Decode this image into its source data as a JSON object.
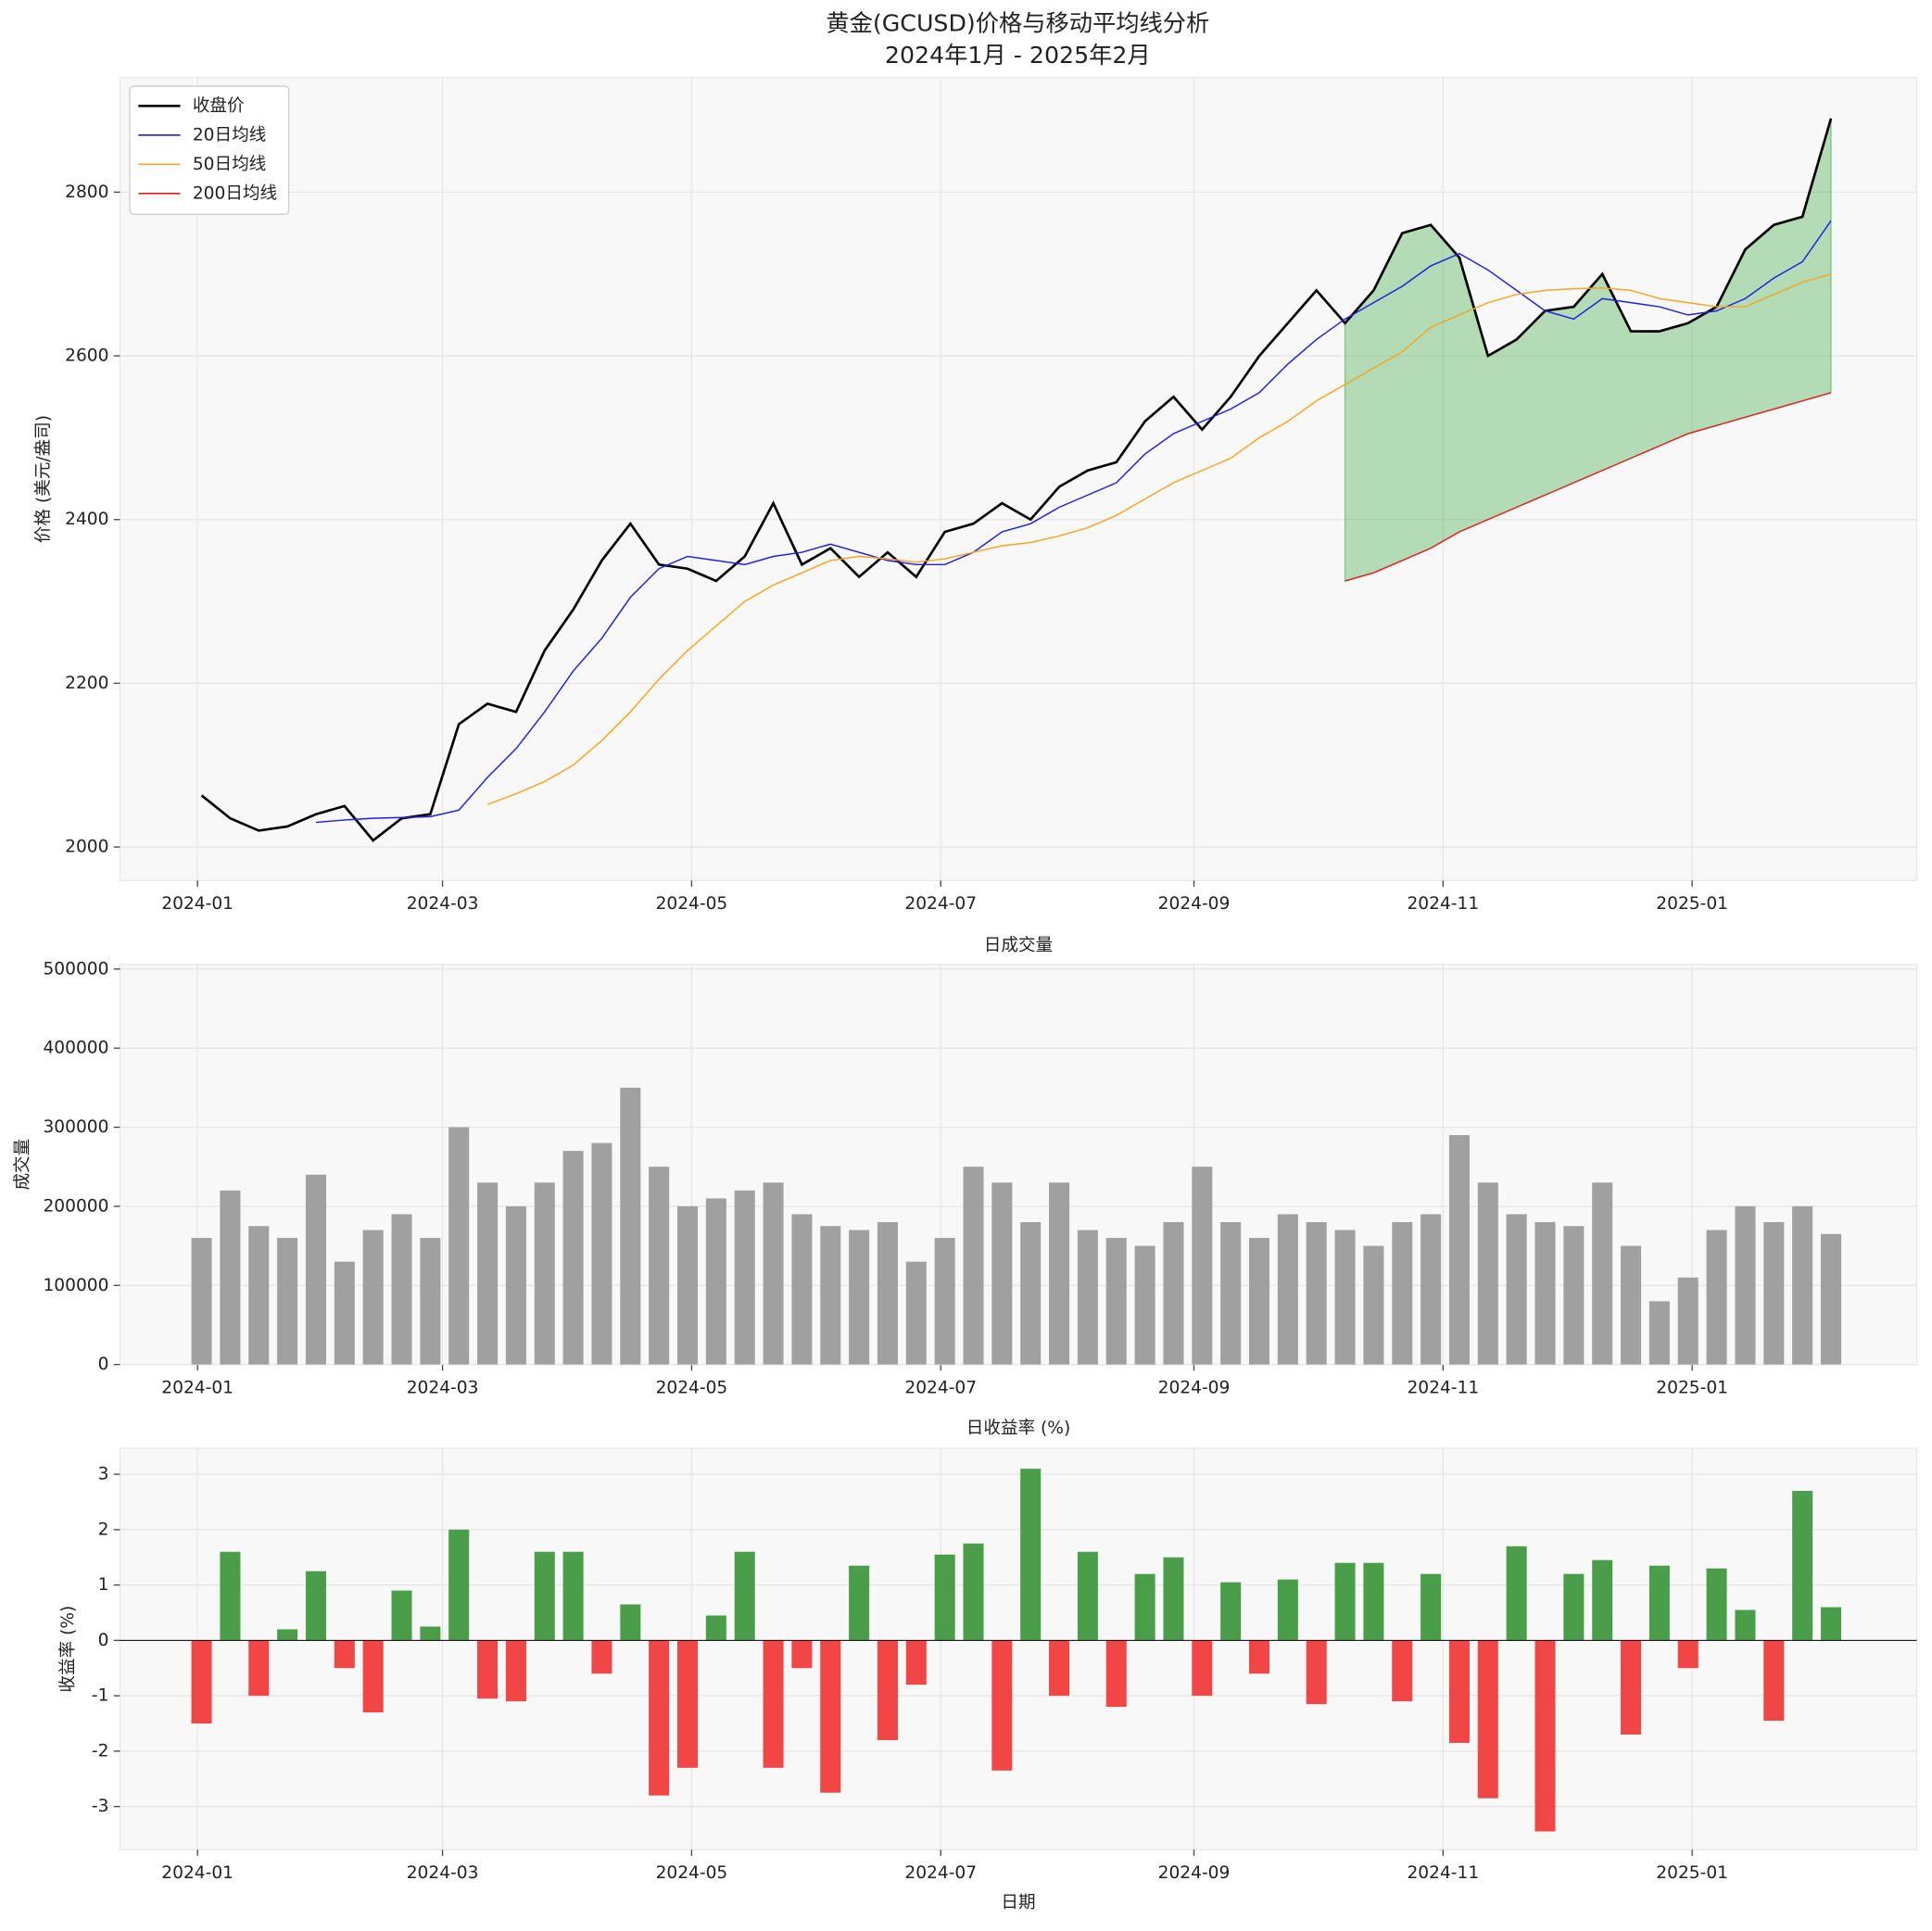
{
  "chart_data": [
    {
      "type": "line",
      "title": "黄金(GCUSD)价格与移动平均线分析",
      "subtitle": "2024年1月 - 2025年2月",
      "ylabel": "价格 (美元/盎司)",
      "x": [
        1,
        8,
        15,
        22,
        29,
        36,
        43,
        50,
        57,
        64,
        71,
        78,
        85,
        92,
        99,
        106,
        113,
        120,
        127,
        134,
        141,
        148,
        155,
        162,
        169,
        176,
        183,
        190,
        197,
        204,
        211,
        218,
        225,
        232,
        239,
        246,
        253,
        260,
        267,
        274,
        281,
        288,
        295,
        302,
        309,
        316,
        323,
        330,
        337,
        344,
        351,
        358,
        365,
        372,
        379,
        386,
        393,
        400
      ],
      "xlim": [
        -19,
        421
      ],
      "xticks": [
        {
          "value": 0,
          "label": "2024-01"
        },
        {
          "value": 60,
          "label": "2024-03"
        },
        {
          "value": 121,
          "label": "2024-05"
        },
        {
          "value": 182,
          "label": "2024-07"
        },
        {
          "value": 244,
          "label": "2024-09"
        },
        {
          "value": 305,
          "label": "2024-11"
        },
        {
          "value": 366,
          "label": "2025-01"
        }
      ],
      "ylim": [
        1959,
        2940
      ],
      "yticks": [
        2000,
        2200,
        2400,
        2600,
        2800
      ],
      "grid": true,
      "legend": "upper left",
      "fill_between": [
        "收盘价",
        "200日均线"
      ],
      "fill_color": "#4caf50",
      "series": [
        {
          "name": "收盘价",
          "color": "#000000",
          "values": [
            2063,
            2035,
            2020,
            2025,
            2040,
            2050,
            2008,
            2035,
            2040,
            2150,
            2175,
            2165,
            2240,
            2290,
            2350,
            2395,
            2345,
            2340,
            2325,
            2355,
            2420,
            2345,
            2365,
            2330,
            2360,
            2330,
            2385,
            2395,
            2420,
            2400,
            2440,
            2460,
            2470,
            2520,
            2550,
            2510,
            2550,
            2600,
            2640,
            2680,
            2640,
            2680,
            2750,
            2760,
            2720,
            2600,
            2620,
            2655,
            2660,
            2700,
            2630,
            2630,
            2640,
            2660,
            2730,
            2760,
            2770,
            2890
          ]
        },
        {
          "name": "20日均线",
          "color": "#1f1fe0",
          "values": [
            null,
            null,
            null,
            null,
            2030,
            2033,
            2035,
            2036,
            2037,
            2045,
            2085,
            2120,
            2165,
            2215,
            2255,
            2305,
            2340,
            2355,
            2350,
            2345,
            2355,
            2360,
            2370,
            2360,
            2350,
            2345,
            2345,
            2360,
            2385,
            2395,
            2415,
            2430,
            2445,
            2480,
            2505,
            2520,
            2535,
            2555,
            2590,
            2620,
            2645,
            2665,
            2685,
            2710,
            2725,
            2705,
            2680,
            2655,
            2645,
            2670,
            2665,
            2660,
            2650,
            2655,
            2670,
            2695,
            2715,
            2765
          ]
        },
        {
          "name": "50日均线",
          "color": "#f5a623",
          "values": [
            null,
            null,
            null,
            null,
            null,
            null,
            null,
            null,
            null,
            null,
            2052,
            2065,
            2080,
            2100,
            2130,
            2165,
            2205,
            2240,
            2270,
            2300,
            2320,
            2335,
            2350,
            2355,
            2352,
            2348,
            2352,
            2360,
            2368,
            2372,
            2380,
            2390,
            2405,
            2425,
            2445,
            2460,
            2475,
            2500,
            2520,
            2545,
            2565,
            2585,
            2605,
            2635,
            2650,
            2665,
            2675,
            2680,
            2682,
            2683,
            2680,
            2670,
            2665,
            2660,
            2660,
            2675,
            2690,
            2700
          ]
        },
        {
          "name": "200日均线",
          "color": "#e02020",
          "values": [
            null,
            null,
            null,
            null,
            null,
            null,
            null,
            null,
            null,
            null,
            null,
            null,
            null,
            null,
            null,
            null,
            null,
            null,
            null,
            null,
            null,
            null,
            null,
            null,
            null,
            null,
            null,
            null,
            null,
            null,
            null,
            null,
            null,
            null,
            null,
            null,
            null,
            null,
            null,
            null,
            2325,
            2335,
            2350,
            2365,
            2385,
            2400,
            2415,
            2430,
            2445,
            2460,
            2475,
            2490,
            2505,
            2515,
            2525,
            2535,
            2545,
            2555
          ]
        }
      ]
    },
    {
      "type": "bar",
      "title": "日成交量",
      "ylabel": "成交量",
      "color": "#a0a0a0",
      "bar_days": 5,
      "x": [
        1,
        8,
        15,
        22,
        29,
        36,
        43,
        50,
        57,
        64,
        71,
        78,
        85,
        92,
        99,
        106,
        113,
        120,
        127,
        134,
        141,
        148,
        155,
        162,
        169,
        176,
        183,
        190,
        197,
        204,
        211,
        218,
        225,
        232,
        239,
        246,
        253,
        260,
        267,
        274,
        281,
        288,
        295,
        302,
        309,
        316,
        323,
        330,
        337,
        344,
        351,
        358,
        365,
        372,
        379,
        386,
        393,
        400
      ],
      "xlim": [
        -19,
        421
      ],
      "xticks": [
        {
          "value": 0,
          "label": "2024-01"
        },
        {
          "value": 60,
          "label": "2024-03"
        },
        {
          "value": 121,
          "label": "2024-05"
        },
        {
          "value": 182,
          "label": "2024-07"
        },
        {
          "value": 244,
          "label": "2024-09"
        },
        {
          "value": 305,
          "label": "2024-11"
        },
        {
          "value": 366,
          "label": "2025-01"
        }
      ],
      "ylim": [
        0,
        506000
      ],
      "yticks": [
        0,
        100000,
        200000,
        300000,
        400000,
        500000
      ],
      "grid": true,
      "values": [
        160000,
        220000,
        175000,
        160000,
        240000,
        130000,
        170000,
        190000,
        160000,
        300000,
        230000,
        200000,
        230000,
        270000,
        280000,
        350000,
        250000,
        200000,
        210000,
        220000,
        230000,
        190000,
        175000,
        170000,
        180000,
        130000,
        160000,
        250000,
        230000,
        180000,
        230000,
        170000,
        160000,
        150000,
        180000,
        250000,
        180000,
        160000,
        190000,
        180000,
        170000,
        150000,
        180000,
        190000,
        290000,
        230000,
        190000,
        180000,
        175000,
        230000,
        150000,
        80000,
        110000,
        170000,
        200000,
        180000,
        200000,
        165000
      ]
    },
    {
      "type": "bar",
      "title": "日收益率 (%)",
      "ylabel": "收益率 (%)",
      "xlabel": "日期",
      "positive_color": "#4a9e4a",
      "negative_color": "#f04646",
      "bar_days": 5,
      "x": [
        1,
        8,
        15,
        22,
        29,
        36,
        43,
        50,
        57,
        64,
        71,
        78,
        85,
        92,
        99,
        106,
        113,
        120,
        127,
        134,
        141,
        148,
        155,
        162,
        169,
        176,
        183,
        190,
        197,
        204,
        211,
        218,
        225,
        232,
        239,
        246,
        253,
        260,
        267,
        274,
        281,
        288,
        295,
        302,
        309,
        316,
        323,
        330,
        337,
        344,
        351,
        358,
        365,
        372,
        379,
        386,
        393,
        400
      ],
      "xlim": [
        -19,
        421
      ],
      "xticks": [
        {
          "value": 0,
          "label": "2024-01"
        },
        {
          "value": 60,
          "label": "2024-03"
        },
        {
          "value": 121,
          "label": "2024-05"
        },
        {
          "value": 182,
          "label": "2024-07"
        },
        {
          "value": 244,
          "label": "2024-09"
        },
        {
          "value": 305,
          "label": "2024-11"
        },
        {
          "value": 366,
          "label": "2025-01"
        }
      ],
      "ylim": [
        -3.78,
        3.47
      ],
      "yticks": [
        -3,
        -2,
        -1,
        0,
        1,
        2,
        3
      ],
      "grid": true,
      "values": [
        -1.5,
        1.6,
        -1.0,
        0.2,
        1.25,
        -0.5,
        -1.3,
        0.9,
        0.25,
        2.0,
        -1.05,
        -1.1,
        1.6,
        1.6,
        -0.6,
        0.65,
        -2.8,
        -2.3,
        0.45,
        1.6,
        -2.3,
        -0.5,
        -2.75,
        1.35,
        -1.8,
        -0.8,
        1.55,
        1.75,
        -2.35,
        3.1,
        -1.0,
        1.6,
        -1.2,
        1.2,
        1.5,
        -1.0,
        1.05,
        -0.6,
        1.1,
        -1.15,
        1.4,
        1.4,
        -1.1,
        1.2,
        -1.85,
        -2.85,
        1.7,
        -3.45,
        1.2,
        1.45,
        -1.7,
        1.35,
        -0.5,
        1.3,
        0.55,
        -1.45,
        2.7,
        0.6
      ]
    }
  ]
}
